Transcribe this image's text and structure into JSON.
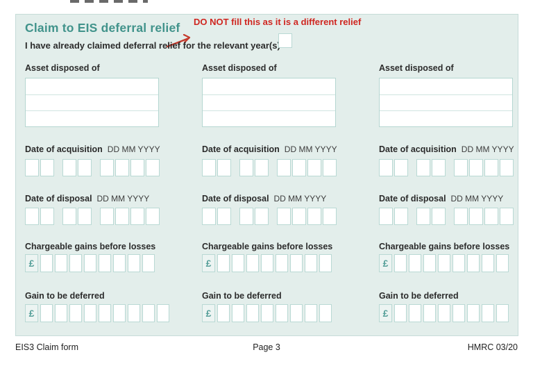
{
  "header": {
    "title": "Claim to EIS deferral relief",
    "annotation": "DO NOT fill this as it is a different relief",
    "claim_statement": "I have already claimed deferral relief for the relevant year(s)",
    "claim_checkbox_value": ""
  },
  "field_labels": {
    "asset": "Asset disposed of",
    "date_of_acquisition": "Date of acquisition",
    "date_of_disposal": "Date of disposal",
    "date_format_hint": "DD MM YYYY",
    "chargeable_gains": "Chargeable gains before losses",
    "gain_deferred": "Gain to be deferred",
    "currency_symbol": "£"
  },
  "columns": [
    {
      "asset_value": "",
      "date_of_acquisition_value": "",
      "date_of_disposal_value": "",
      "chargeable_gains_value": "",
      "gain_deferred_value": ""
    },
    {
      "asset_value": "",
      "date_of_acquisition_value": "",
      "date_of_disposal_value": "",
      "chargeable_gains_value": "",
      "gain_deferred_value": ""
    },
    {
      "asset_value": "",
      "date_of_acquisition_value": "",
      "date_of_disposal_value": "",
      "chargeable_gains_value": "",
      "gain_deferred_value": ""
    }
  ],
  "footer": {
    "form_name": "EIS3 Claim form",
    "page_number": "Page 3",
    "reference": "HMRC 03/20"
  },
  "colors": {
    "panel_background": "#e3eeeb",
    "box_border": "#b9d9d4",
    "title_teal": "#41938b",
    "annotation_red": "#cf2620",
    "text": "#2b2b2b"
  }
}
